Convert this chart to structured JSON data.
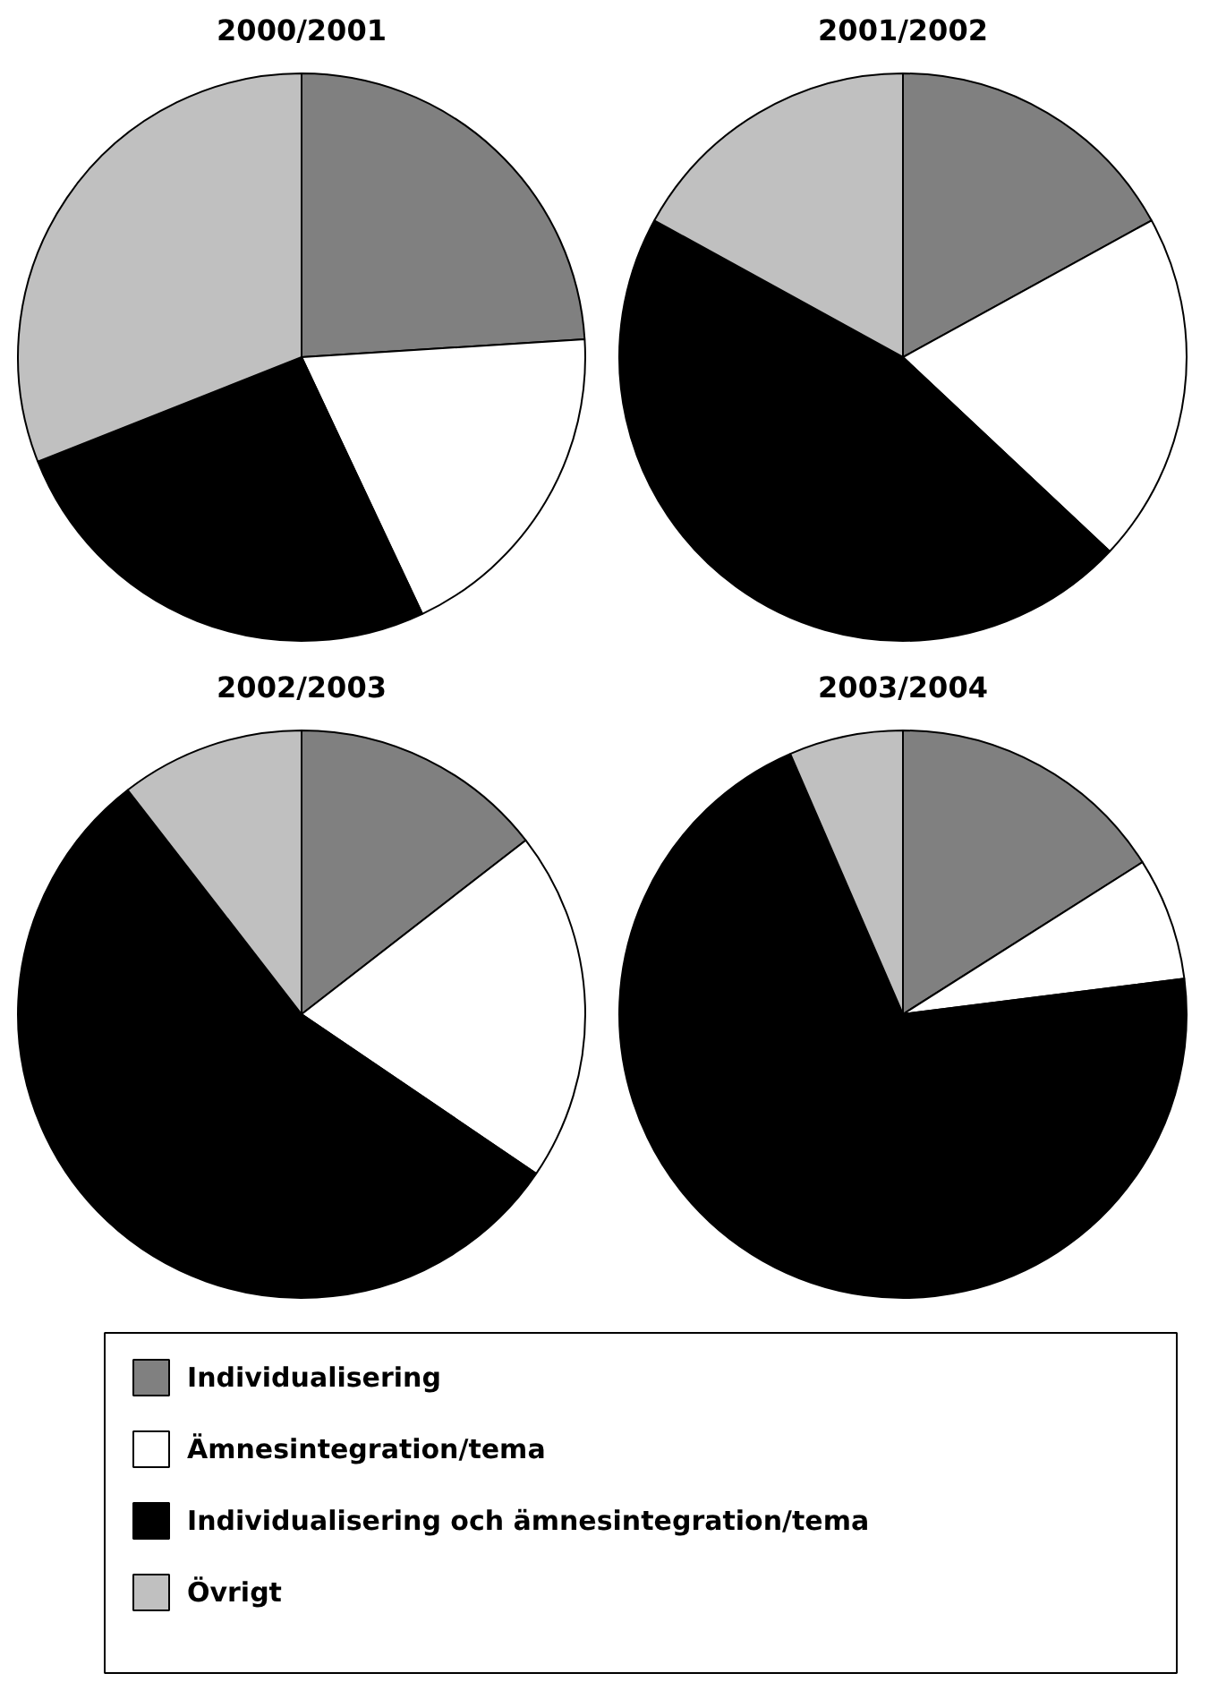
{
  "chart_data": [
    {
      "type": "pie",
      "title": "2000/2001",
      "categories": [
        "Individualisering",
        "Ämnesintegration/tema",
        "Individualisering och ämnesintegration/tema",
        "Övrigt"
      ],
      "values": [
        24,
        19,
        26,
        31
      ],
      "colors": [
        "#808080",
        "#ffffff",
        "#000000",
        "#c0c0c0"
      ],
      "legend": "bottom"
    },
    {
      "type": "pie",
      "title": "2001/2002",
      "values": [
        17,
        20,
        46,
        17
      ],
      "colors": [
        "#808080",
        "#ffffff",
        "#000000",
        "#c0c0c0"
      ]
    },
    {
      "type": "pie",
      "title": "2002/2003",
      "values": [
        14.5,
        20,
        55,
        10.5
      ],
      "colors": [
        "#808080",
        "#ffffff",
        "#000000",
        "#c0c0c0"
      ]
    },
    {
      "type": "pie",
      "title": "2003/2004",
      "values": [
        16,
        7,
        70.5,
        6.5
      ],
      "colors": [
        "#808080",
        "#ffffff",
        "#000000",
        "#c0c0c0"
      ]
    }
  ]
}
